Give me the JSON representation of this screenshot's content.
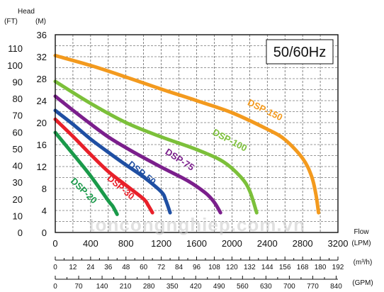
{
  "chart_data": {
    "type": "line",
    "header": {
      "title": "Head",
      "unit_ft": "(FT)",
      "unit_m": "(M)"
    },
    "frequency_label": "50/60Hz",
    "x_label": "Flow",
    "x_unit_lpm": "(LPM)",
    "x_unit_m3h": "(m³/h)",
    "x_unit_gpm": "(GPM)",
    "y_m_ticks": [
      0,
      4,
      8,
      12,
      16,
      20,
      24,
      28,
      32,
      36
    ],
    "y_ft_ticks": [
      0,
      10,
      20,
      30,
      40,
      50,
      60,
      70,
      80,
      90,
      100,
      110
    ],
    "x_lpm_ticks": [
      0,
      400,
      800,
      1200,
      1600,
      2000,
      2400,
      2800,
      3200
    ],
    "x_m3h_ticks": [
      0,
      12,
      24,
      36,
      48,
      60,
      72,
      84,
      96,
      108,
      120,
      132,
      144,
      156,
      168,
      180,
      192
    ],
    "x_gpm_ticks": [
      0,
      70,
      140,
      210,
      280,
      350,
      420,
      490,
      560,
      630,
      700,
      770,
      840
    ],
    "xlim": [
      0,
      3200
    ],
    "ylim": [
      0,
      36
    ],
    "grid": true,
    "watermark": "toncongnghiep.com.vn",
    "series": [
      {
        "name": "DSP-20",
        "color": "#1a9a4a",
        "x": [
          0,
          200,
          400,
          600,
          650,
          700
        ],
        "y": [
          18.2,
          14.3,
          10.3,
          5.8,
          4.8,
          3.3
        ]
      },
      {
        "name": "DSP-30",
        "color": "#e8202a",
        "x": [
          0,
          200,
          400,
          600,
          800,
          1000,
          1050,
          1100
        ],
        "y": [
          20.6,
          17.5,
          14.2,
          11.1,
          8.6,
          6.1,
          5.0,
          3.6
        ]
      },
      {
        "name": "DSP-50",
        "color": "#1f4fa3",
        "x": [
          0,
          200,
          400,
          600,
          800,
          1000,
          1200,
          1250,
          1300
        ],
        "y": [
          22.2,
          19.7,
          17.0,
          14.6,
          12.3,
          10.1,
          7.4,
          5.9,
          3.6
        ]
      },
      {
        "name": "DSP-75",
        "color": "#7b1f8c",
        "x": [
          0,
          300,
          600,
          900,
          1200,
          1500,
          1700,
          1800,
          1870
        ],
        "y": [
          24.8,
          21.0,
          17.4,
          14.5,
          11.9,
          9.4,
          7.2,
          5.5,
          3.6
        ]
      },
      {
        "name": "DSP-100",
        "color": "#7cc03a",
        "x": [
          0,
          400,
          800,
          1200,
          1600,
          1900,
          2100,
          2200,
          2280
        ],
        "y": [
          27.5,
          23.5,
          20.0,
          17.4,
          15.1,
          12.9,
          10.1,
          7.6,
          3.6
        ]
      },
      {
        "name": "DSP-150",
        "color": "#f39a1e",
        "x": [
          0,
          400,
          800,
          1200,
          1600,
          2000,
          2400,
          2600,
          2800,
          2900,
          2950,
          2980
        ],
        "y": [
          32.2,
          30.4,
          28.3,
          26.1,
          24.0,
          21.8,
          18.8,
          16.9,
          13.5,
          10.3,
          7.0,
          3.6
        ]
      }
    ]
  }
}
